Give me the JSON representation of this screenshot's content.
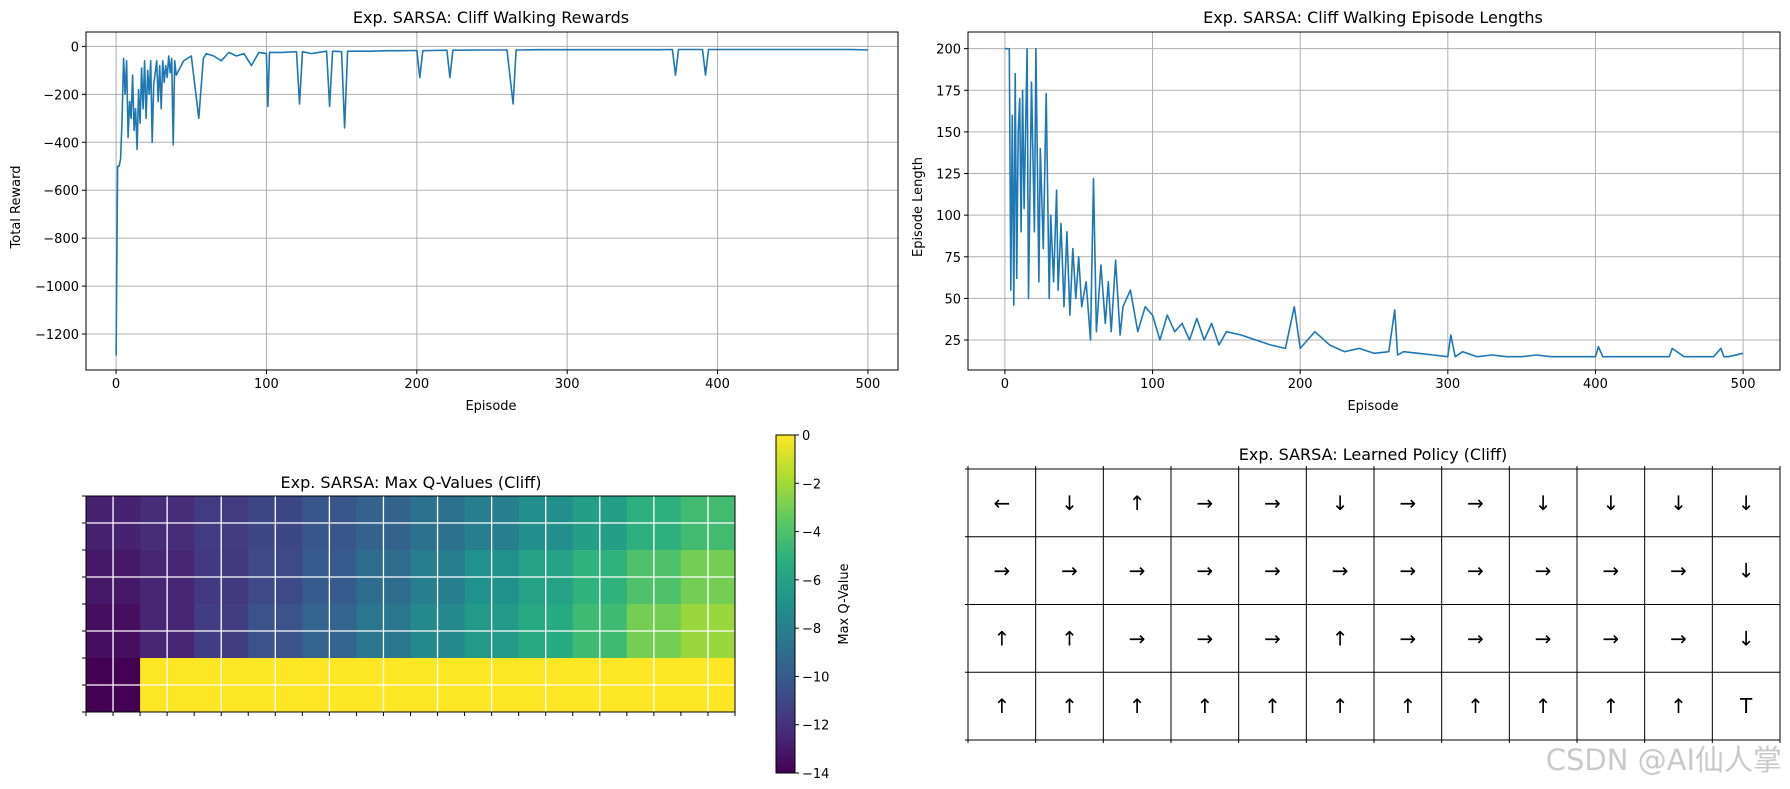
{
  "watermark": "CSDN @AI仙人掌",
  "chart_data": [
    {
      "id": "rewards",
      "type": "line",
      "title": "Exp. SARSA: Cliff Walking Rewards",
      "xlabel": "Episode",
      "ylabel": "Total Reward",
      "xlim": [
        -20,
        520
      ],
      "ylim": [
        -1350,
        60
      ],
      "xticks": [
        0,
        100,
        200,
        300,
        400,
        500
      ],
      "yticks": [
        0,
        -200,
        -400,
        -600,
        -800,
        -1000,
        -1200
      ],
      "grid": true,
      "color": "#1f77b4",
      "x": [
        0,
        1,
        2,
        3,
        4,
        5,
        6,
        7,
        8,
        9,
        10,
        11,
        12,
        13,
        14,
        15,
        16,
        17,
        18,
        19,
        20,
        21,
        22,
        23,
        24,
        25,
        26,
        27,
        28,
        29,
        30,
        31,
        32,
        33,
        34,
        35,
        36,
        37,
        38,
        39,
        40,
        45,
        50,
        55,
        58,
        60,
        65,
        70,
        75,
        80,
        85,
        90,
        95,
        100,
        101,
        102,
        110,
        120,
        122,
        124,
        130,
        140,
        142,
        144,
        150,
        152,
        154,
        160,
        170,
        180,
        190,
        200,
        202,
        204,
        210,
        220,
        222,
        224,
        230,
        240,
        250,
        260,
        264,
        266,
        268,
        280,
        290,
        300,
        310,
        320,
        330,
        340,
        350,
        360,
        370,
        372,
        374,
        380,
        390,
        392,
        394,
        400,
        410,
        420,
        430,
        440,
        450,
        460,
        470,
        480,
        490,
        500
      ],
      "values": [
        -1290,
        -500,
        -500,
        -470,
        -300,
        -50,
        -200,
        -60,
        -380,
        -230,
        -300,
        -120,
        -350,
        -260,
        -430,
        -180,
        -320,
        -90,
        -260,
        -60,
        -300,
        -100,
        -200,
        -60,
        -400,
        -160,
        -110,
        -60,
        -230,
        -80,
        -260,
        -60,
        -150,
        -80,
        -130,
        -40,
        -110,
        -50,
        -410,
        -60,
        -120,
        -60,
        -40,
        -300,
        -50,
        -30,
        -40,
        -60,
        -25,
        -40,
        -30,
        -80,
        -25,
        -30,
        -250,
        -25,
        -25,
        -22,
        -240,
        -22,
        -30,
        -20,
        -250,
        -20,
        -22,
        -340,
        -20,
        -20,
        -20,
        -18,
        -18,
        -17,
        -130,
        -18,
        -17,
        -16,
        -130,
        -16,
        -16,
        -15,
        -15,
        -15,
        -240,
        -15,
        -15,
        -14,
        -14,
        -14,
        -14,
        -14,
        -14,
        -14,
        -14,
        -14,
        -13,
        -120,
        -13,
        -13,
        -13,
        -120,
        -13,
        -13,
        -13,
        -13,
        -13,
        -13,
        -13,
        -13,
        -13,
        -13,
        -13,
        -15
      ]
    },
    {
      "id": "lengths",
      "type": "line",
      "title": "Exp. SARSA: Cliff Walking Episode Lengths",
      "xlabel": "Episode",
      "ylabel": "Episode Length",
      "xlim": [
        -25,
        525
      ],
      "ylim": [
        7,
        210
      ],
      "xticks": [
        0,
        100,
        200,
        300,
        400,
        500
      ],
      "yticks": [
        25,
        50,
        75,
        100,
        125,
        150,
        175,
        200
      ],
      "grid": true,
      "color": "#1f77b4",
      "x": [
        0,
        3,
        4,
        5,
        6,
        7,
        8,
        9,
        10,
        11,
        12,
        13,
        15,
        16,
        18,
        20,
        21,
        23,
        24,
        25,
        26,
        28,
        30,
        31,
        33,
        35,
        36,
        38,
        40,
        42,
        44,
        46,
        48,
        50,
        52,
        55,
        58,
        60,
        62,
        65,
        68,
        70,
        72,
        75,
        78,
        80,
        85,
        90,
        95,
        100,
        105,
        110,
        115,
        120,
        125,
        130,
        135,
        140,
        145,
        150,
        160,
        170,
        180,
        190,
        196,
        200,
        210,
        220,
        230,
        240,
        250,
        260,
        264,
        266,
        270,
        280,
        290,
        300,
        302,
        305,
        310,
        320,
        330,
        340,
        350,
        360,
        370,
        380,
        390,
        400,
        402,
        405,
        410,
        420,
        430,
        440,
        450,
        452,
        460,
        470,
        480,
        485,
        487,
        490,
        500
      ],
      "values": [
        200,
        200,
        55,
        160,
        46,
        185,
        62,
        150,
        170,
        90,
        175,
        104,
        200,
        50,
        180,
        90,
        200,
        60,
        140,
        110,
        80,
        173,
        50,
        100,
        60,
        115,
        55,
        95,
        45,
        90,
        40,
        80,
        50,
        75,
        45,
        60,
        25,
        122,
        30,
        70,
        35,
        60,
        30,
        73,
        28,
        45,
        55,
        30,
        45,
        40,
        25,
        40,
        30,
        35,
        25,
        38,
        25,
        35,
        22,
        30,
        28,
        25,
        22,
        20,
        45,
        20,
        30,
        22,
        18,
        20,
        17,
        18,
        43,
        16,
        18,
        17,
        16,
        15,
        28,
        15,
        18,
        15,
        16,
        15,
        15,
        16,
        15,
        15,
        15,
        15,
        21,
        15,
        15,
        15,
        15,
        15,
        15,
        20,
        15,
        15,
        15,
        20,
        15,
        15,
        17
      ]
    },
    {
      "id": "qvalues",
      "type": "heatmap",
      "title": "Exp. SARSA: Max Q-Values (Cliff)",
      "colorbar_label": "Max Q-Value",
      "colormap": "viridis",
      "vmin": -14,
      "vmax": 0,
      "colorbar_ticks": [
        0,
        -2,
        -4,
        -6,
        -8,
        -10,
        -12,
        -14
      ],
      "rows": 4,
      "cols": 12,
      "values": [
        [
          -12.7,
          -12.3,
          -11.6,
          -11.0,
          -10.3,
          -9.6,
          -8.8,
          -8.0,
          -7.1,
          -6.2,
          -5.1,
          -4.4
        ],
        [
          -13.1,
          -12.5,
          -11.7,
          -10.9,
          -10.0,
          -9.0,
          -8.0,
          -7.0,
          -6.0,
          -5.0,
          -4.0,
          -3.0
        ],
        [
          -13.5,
          -12.5,
          -11.5,
          -10.5,
          -9.5,
          -8.5,
          -7.5,
          -6.5,
          -5.5,
          -4.5,
          -3.0,
          -2.2
        ],
        [
          -14.0,
          0,
          0,
          0,
          0,
          0,
          0,
          0,
          0,
          0,
          0,
          0
        ]
      ]
    },
    {
      "id": "policy",
      "type": "table",
      "title": "Exp. SARSA: Learned Policy (Cliff)",
      "rows": 4,
      "cols": 12,
      "terminal_color": "#ff0000",
      "cells": [
        [
          "←",
          "↓",
          "↑",
          "→",
          "→",
          "↓",
          "→",
          "→",
          "↓",
          "↓",
          "↓",
          "↓"
        ],
        [
          "→",
          "→",
          "→",
          "→",
          "→",
          "→",
          "→",
          "→",
          "→",
          "→",
          "→",
          "↓"
        ],
        [
          "↑",
          "↑",
          "→",
          "→",
          "→",
          "↑",
          "→",
          "→",
          "→",
          "→",
          "→",
          "↓"
        ],
        [
          "↑",
          "↑",
          "↑",
          "↑",
          "↑",
          "↑",
          "↑",
          "↑",
          "↑",
          "↑",
          "↑",
          "T"
        ]
      ]
    }
  ]
}
